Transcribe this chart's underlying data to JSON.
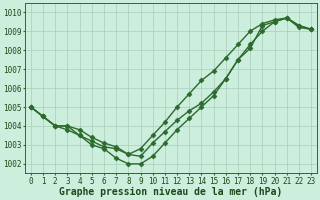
{
  "title": "Graphe pression niveau de la mer (hPa)",
  "xlabel_hours": [
    0,
    1,
    2,
    3,
    4,
    5,
    6,
    7,
    8,
    9,
    10,
    11,
    12,
    13,
    14,
    15,
    16,
    17,
    18,
    19,
    20,
    21,
    22,
    23
  ],
  "series1": [
    1005.0,
    1004.5,
    1004.0,
    1003.8,
    1003.5,
    1003.2,
    1002.9,
    1002.8,
    1002.5,
    1002.4,
    1003.1,
    1003.7,
    1004.3,
    1004.8,
    1005.2,
    1005.8,
    1006.5,
    1007.5,
    1008.1,
    1009.3,
    1009.5,
    1009.7,
    1009.3,
    1009.1
  ],
  "series2": [
    1005.0,
    1004.5,
    1004.0,
    1004.0,
    1003.8,
    1003.4,
    1003.1,
    1002.9,
    1002.5,
    1002.8,
    1003.5,
    1004.2,
    1005.0,
    1005.7,
    1006.4,
    1006.9,
    1007.6,
    1008.3,
    1009.0,
    1009.4,
    1009.6,
    1009.7,
    1009.3,
    1009.1
  ],
  "series3": [
    1005.0,
    1004.5,
    1004.0,
    1004.0,
    1003.5,
    1003.0,
    1002.8,
    1002.3,
    1002.0,
    1002.0,
    1002.4,
    1003.1,
    1003.8,
    1004.4,
    1005.0,
    1005.6,
    1006.5,
    1007.5,
    1008.3,
    1009.0,
    1009.5,
    1009.7,
    1009.2,
    1009.1
  ],
  "ylim_min": 1001.5,
  "ylim_max": 1010.5,
  "yticks": [
    1002,
    1003,
    1004,
    1005,
    1006,
    1007,
    1008,
    1009,
    1010
  ],
  "line_color": "#2d6a2d",
  "bg_color": "#cceedd",
  "grid_color": "#aaccbb",
  "label_color": "#1a4a1a",
  "marker": "D",
  "markersize": 2.5,
  "linewidth": 1.0,
  "title_fontsize": 7,
  "tick_fontsize": 5.5
}
